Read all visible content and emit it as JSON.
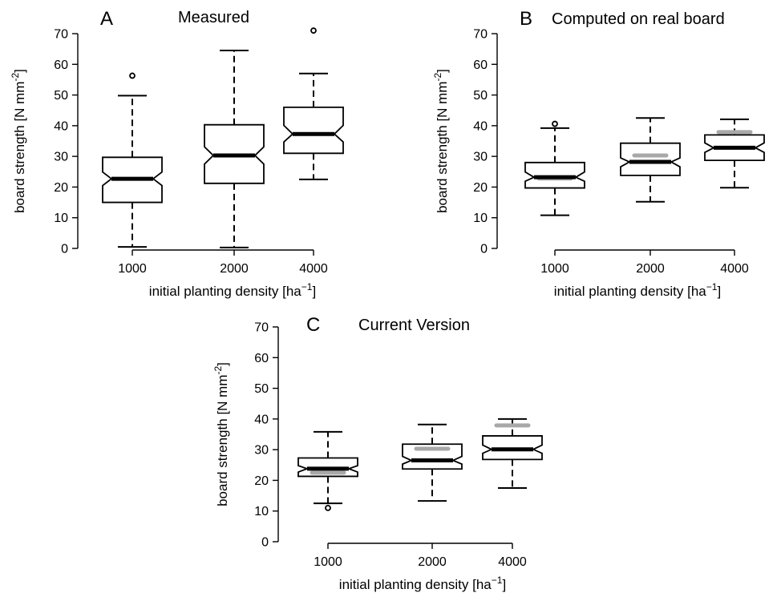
{
  "chart_data": [
    {
      "type": "boxplot",
      "panel_letter": "A",
      "title": "Measured",
      "xlabel": {
        "main": "initial planting density [ha",
        "sup": "−1",
        "close": "]"
      },
      "ylabel": {
        "main": "board strength [N mm",
        "sup": "-2",
        "close": "]"
      },
      "ylim": [
        0,
        70
      ],
      "yticks": [
        0,
        10,
        20,
        30,
        40,
        50,
        60,
        70
      ],
      "categories": [
        "1000",
        "2000",
        "4000"
      ],
      "boxes": [
        {
          "whisker_low": 0.5,
          "q1": 15,
          "median": 22.7,
          "q3": 29.7,
          "whisker_high": 49.8,
          "notch_low": 20.5,
          "notch_high": 24.9,
          "outliers": [
            56.3
          ],
          "reference": null
        },
        {
          "whisker_low": 0.3,
          "q1": 21.2,
          "median": 30.3,
          "q3": 40.3,
          "whisker_high": 64.5,
          "notch_low": 27.5,
          "notch_high": 33.1,
          "outliers": [],
          "reference": null
        },
        {
          "whisker_low": 22.5,
          "q1": 31,
          "median": 37.3,
          "q3": 46,
          "whisker_high": 57,
          "notch_low": 34.7,
          "notch_high": 40.1,
          "outliers": [
            71
          ],
          "reference": null
        }
      ]
    },
    {
      "type": "boxplot",
      "panel_letter": "B",
      "title": "Computed on real board",
      "xlabel": {
        "main": "initial planting density [ha",
        "sup": "−1",
        "close": "]"
      },
      "ylabel": {
        "main": "board strength [N mm",
        "sup": "-2",
        "close": "]"
      },
      "ylim": [
        0,
        70
      ],
      "yticks": [
        0,
        10,
        20,
        30,
        40,
        50,
        60,
        70
      ],
      "categories": [
        "1000",
        "2000",
        "4000"
      ],
      "boxes": [
        {
          "whisker_low": 10.8,
          "q1": 19.7,
          "median": 23.2,
          "q3": 28,
          "whisker_high": 39.2,
          "notch_low": 21.9,
          "notch_high": 24.9,
          "outliers": [
            40.6
          ],
          "reference": 22.8
        },
        {
          "whisker_low": 15.2,
          "q1": 23.8,
          "median": 28.2,
          "q3": 34.3,
          "whisker_high": 42.5,
          "notch_low": 26.6,
          "notch_high": 29.5,
          "outliers": [],
          "reference": 30.3
        },
        {
          "whisker_low": 19.8,
          "q1": 28.7,
          "median": 32.8,
          "q3": 37,
          "whisker_high": 42.1,
          "notch_low": 31.3,
          "notch_high": 34.4,
          "outliers": [],
          "reference": 37.9
        }
      ]
    },
    {
      "type": "boxplot",
      "panel_letter": "C",
      "title": "Current Version",
      "xlabel": {
        "main": "initial planting density [ha",
        "sup": "−1",
        "close": "]"
      },
      "ylabel": {
        "main": "board strength [N mm",
        "sup": "-2",
        "close": "]"
      },
      "ylim": [
        0,
        70
      ],
      "yticks": [
        0,
        10,
        20,
        30,
        40,
        50,
        60,
        70
      ],
      "categories": [
        "1000",
        "2000",
        "4000"
      ],
      "boxes": [
        {
          "whisker_low": 12.5,
          "q1": 21.3,
          "median": 23.8,
          "q3": 27.3,
          "whisker_high": 35.8,
          "notch_low": 22.7,
          "notch_high": 24.8,
          "outliers": [
            11
          ],
          "reference": 22.5
        },
        {
          "whisker_low": 13.3,
          "q1": 23.7,
          "median": 26.5,
          "q3": 31.8,
          "whisker_high": 38.2,
          "notch_low": 25.3,
          "notch_high": 27.8,
          "outliers": [],
          "reference": 30.3
        },
        {
          "whisker_low": 17.5,
          "q1": 26.8,
          "median": 30.1,
          "q3": 34.5,
          "whisker_high": 40,
          "notch_low": 28.8,
          "notch_high": 31.5,
          "outliers": [],
          "reference": 37.9
        }
      ]
    }
  ]
}
